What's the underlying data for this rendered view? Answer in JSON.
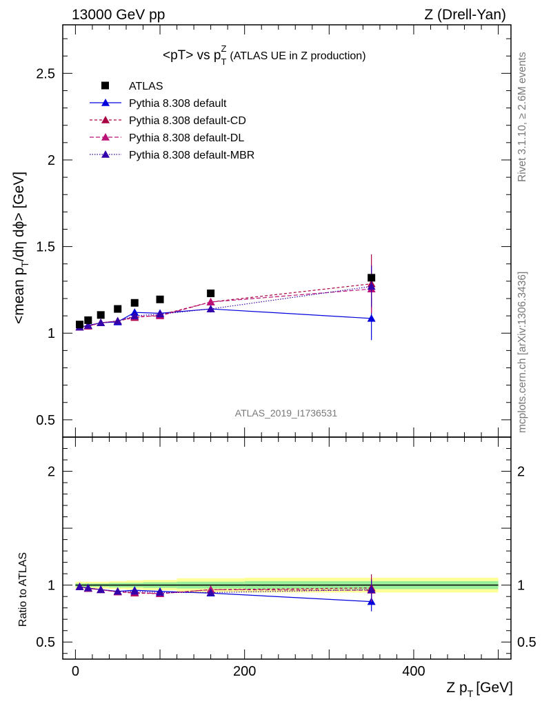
{
  "header": {
    "left": "13000 GeV pp",
    "right": "Z (Drell-Yan)"
  },
  "side_labels": {
    "rivet": "Rivet 3.1.10, ≥ 2.6M events",
    "mcplots": "mcplots.cern.ch [arXiv:1306.3436]"
  },
  "watermark": "ATLAS_2019_I1736531",
  "chart_data": {
    "type": "scatter",
    "title": "<pT> vs p_T^Z (ATLAS UE in Z production)",
    "xlabel": "Z p_T [GeV]",
    "ylabel": "<mean p_T/dη dϕ> [GeV]",
    "ratio_ylabel": "Ratio to ATLAS",
    "xlim": [
      -15,
      515
    ],
    "ylim": [
      0.4,
      2.78
    ],
    "ratio_ylim": [
      0.35,
      2.3
    ],
    "x_ticks": [
      0,
      200,
      400
    ],
    "y_ticks": [
      0.5,
      1,
      1.5,
      2,
      2.5
    ],
    "ratio_y_ticks": [
      0.5,
      1,
      2
    ],
    "legend_position": "top-left",
    "data": {
      "name": "ATLAS",
      "color": "#000000",
      "x": [
        5,
        15,
        30,
        50,
        70,
        100,
        160,
        350
      ],
      "y": [
        1.05,
        1.075,
        1.105,
        1.14,
        1.175,
        1.195,
        1.23,
        1.32
      ],
      "bins": [
        [
          0,
          10
        ],
        [
          10,
          20
        ],
        [
          20,
          40
        ],
        [
          40,
          60
        ],
        [
          60,
          80
        ],
        [
          80,
          120
        ],
        [
          120,
          200
        ],
        [
          200,
          500
        ]
      ],
      "ratio_band_inner": [
        0.015,
        0.015,
        0.015,
        0.02,
        0.02,
        0.025,
        0.03,
        0.035
      ],
      "ratio_band_outer": [
        0.03,
        0.03,
        0.03,
        0.035,
        0.04,
        0.045,
        0.06,
        0.065
      ]
    },
    "series": [
      {
        "name": "Pythia 8.308 default",
        "color": "#0000dd",
        "dash": "",
        "x": [
          5,
          15,
          30,
          50,
          70,
          100,
          160,
          350
        ],
        "y": [
          1.035,
          1.045,
          1.06,
          1.065,
          1.12,
          1.115,
          1.14,
          1.085
        ],
        "err": [
          0.005,
          0.005,
          0.005,
          0.008,
          0.01,
          0.012,
          0.02,
          0.125
        ],
        "ratio": [
          0.985,
          0.975,
          0.96,
          0.945,
          0.955,
          0.945,
          0.93,
          0.855
        ],
        "ratio_err": [
          0.005,
          0.005,
          0.005,
          0.008,
          0.01,
          0.012,
          0.02,
          0.085
        ]
      },
      {
        "name": "Pythia 8.308 default-CD",
        "color": "#aa0044",
        "dash": "4,3",
        "x": [
          5,
          15,
          30,
          50,
          70,
          100,
          160,
          350
        ],
        "y": [
          1.035,
          1.04,
          1.06,
          1.07,
          1.09,
          1.105,
          1.18,
          1.285
        ],
        "err": [
          0.005,
          0.005,
          0.005,
          0.008,
          0.01,
          0.012,
          0.02,
          0.17
        ],
        "ratio": [
          0.985,
          0.97,
          0.96,
          0.94,
          0.93,
          0.925,
          0.96,
          0.975
        ],
        "ratio_err": [
          0.005,
          0.005,
          0.005,
          0.008,
          0.01,
          0.012,
          0.02,
          0.12
        ]
      },
      {
        "name": "Pythia 8.308 default-DL",
        "color": "#bb1177",
        "dash": "6,3",
        "x": [
          5,
          15,
          30,
          50,
          70,
          100,
          160,
          350
        ],
        "y": [
          1.035,
          1.04,
          1.06,
          1.07,
          1.095,
          1.1,
          1.18,
          1.255
        ],
        "err": [
          0.005,
          0.005,
          0.005,
          0.008,
          0.01,
          0.012,
          0.02,
          0.14
        ],
        "ratio": [
          0.985,
          0.97,
          0.96,
          0.94,
          0.935,
          0.925,
          0.96,
          0.955
        ],
        "ratio_err": [
          0.005,
          0.005,
          0.005,
          0.008,
          0.01,
          0.012,
          0.02,
          0.1
        ]
      },
      {
        "name": "Pythia 8.308 default-MBR",
        "color": "#3300aa",
        "dash": "1.5,2",
        "x": [
          5,
          15,
          30,
          50,
          70,
          100,
          160,
          350
        ],
        "y": [
          1.035,
          1.045,
          1.06,
          1.07,
          1.1,
          1.11,
          1.14,
          1.27
        ],
        "err": [
          0.005,
          0.005,
          0.005,
          0.008,
          0.01,
          0.012,
          0.02,
          0.12
        ],
        "ratio": [
          0.985,
          0.975,
          0.96,
          0.945,
          0.945,
          0.935,
          0.935,
          0.96
        ],
        "ratio_err": [
          0.005,
          0.005,
          0.005,
          0.008,
          0.01,
          0.012,
          0.02,
          0.09
        ]
      }
    ]
  }
}
